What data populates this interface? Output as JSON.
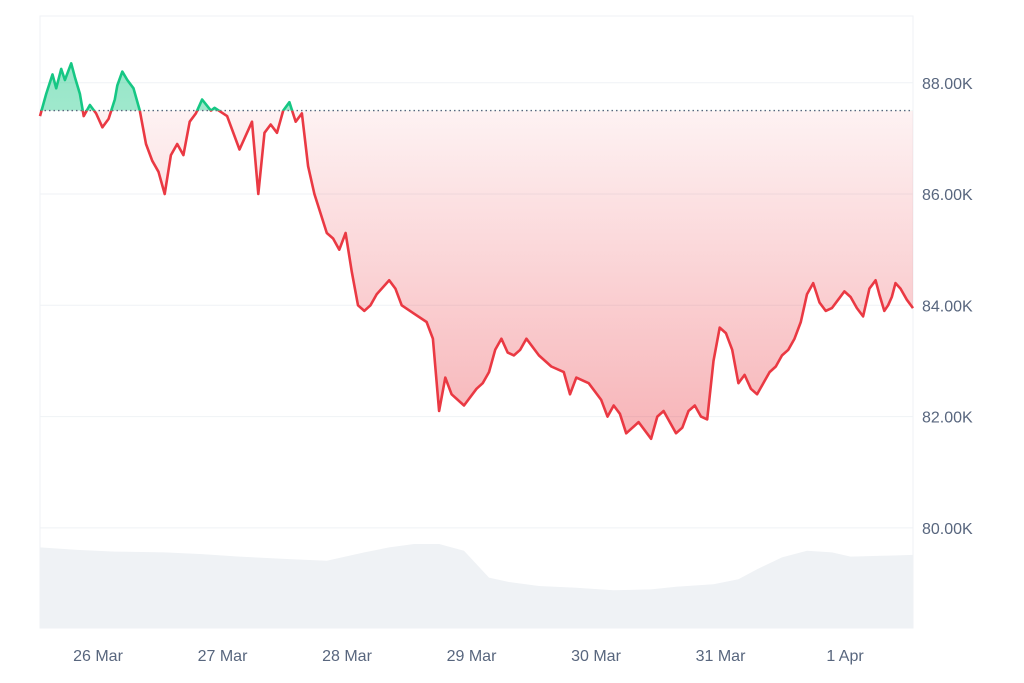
{
  "chart_data": {
    "type": "area",
    "title": "",
    "xlabel": "",
    "ylabel": "",
    "x_tick_labels": [
      "26 Mar",
      "27 Mar",
      "28 Mar",
      "29 Mar",
      "30 Mar",
      "31 Mar",
      "1 Apr"
    ],
    "y_tick_labels": [
      "88.00K",
      "86.00K",
      "84.00K",
      "82.00K",
      "80.00K"
    ],
    "y_tick_values": [
      88000,
      86000,
      84000,
      82000,
      80000
    ],
    "ylim": [
      78200,
      89200
    ],
    "xlim": [
      0,
      7
    ],
    "baseline": 87500,
    "grid": true,
    "colors": {
      "above": "#16c784",
      "below": "#ea3943",
      "above_fill": "#16c784",
      "below_fill": "#ea3943",
      "volume_fill": "#eff2f5",
      "grid": "#eff2f5",
      "baseline_dots": "#58667e"
    },
    "series": [
      {
        "type": "line",
        "x": [
          0,
          0.05,
          0.1,
          0.13,
          0.17,
          0.2,
          0.25,
          0.28,
          0.32,
          0.35,
          0.4,
          0.45,
          0.5,
          0.55,
          0.6,
          0.62,
          0.66,
          0.7,
          0.75,
          0.8,
          0.85,
          0.9,
          0.95,
          1.0,
          1.05,
          1.1,
          1.15,
          1.2,
          1.25,
          1.3,
          1.37,
          1.4,
          1.5,
          1.6,
          1.7,
          1.75,
          1.8,
          1.85,
          1.9,
          1.95,
          2.0,
          2.05,
          2.1,
          2.15,
          2.2,
          2.3,
          2.35,
          2.4,
          2.45,
          2.5,
          2.55,
          2.6,
          2.65,
          2.7,
          2.8,
          2.85,
          2.9,
          3.0,
          3.1,
          3.15,
          3.2,
          3.25,
          3.3,
          3.4,
          3.5,
          3.55,
          3.6,
          3.65,
          3.7,
          3.75,
          3.8,
          3.85,
          3.9,
          4.0,
          4.1,
          4.2,
          4.25,
          4.3,
          4.4,
          4.5,
          4.55,
          4.6,
          4.65,
          4.7,
          4.8,
          4.9,
          4.95,
          5.0,
          5.05,
          5.1,
          5.15,
          5.2,
          5.25,
          5.3,
          5.35,
          5.4,
          5.45,
          5.5,
          5.55,
          5.6,
          5.65,
          5.7,
          5.75,
          5.8,
          5.85,
          5.9,
          5.95,
          6.0,
          6.05,
          6.1,
          6.15,
          6.2,
          6.25,
          6.3,
          6.35,
          6.4,
          6.45,
          6.5,
          6.55,
          6.6,
          6.65,
          6.7,
          6.73,
          6.77,
          6.8,
          6.83,
          6.86,
          6.9,
          6.95,
          7.0
        ],
        "values": [
          87400,
          87800,
          88150,
          87900,
          88250,
          88050,
          88350,
          88100,
          87800,
          87400,
          87600,
          87450,
          87200,
          87350,
          87700,
          87950,
          88200,
          88050,
          87900,
          87500,
          86900,
          86600,
          86400,
          86000,
          86700,
          86900,
          86700,
          87300,
          87450,
          87700,
          87500,
          87550,
          87400,
          86800,
          87300,
          86000,
          87100,
          87250,
          87100,
          87500,
          87650,
          87300,
          87450,
          86500,
          86000,
          85300,
          85200,
          85000,
          85300,
          84600,
          84000,
          83900,
          84000,
          84200,
          84450,
          84300,
          84000,
          83850,
          83700,
          83400,
          82100,
          82700,
          82400,
          82200,
          82500,
          82600,
          82800,
          83200,
          83400,
          83150,
          83100,
          83200,
          83400,
          83100,
          82900,
          82800,
          82400,
          82700,
          82600,
          82300,
          82000,
          82200,
          82050,
          81700,
          81900,
          81600,
          82000,
          82100,
          81900,
          81700,
          81800,
          82100,
          82200,
          82000,
          81950,
          83000,
          83600,
          83500,
          83200,
          82600,
          82750,
          82500,
          82400,
          82600,
          82800,
          82900,
          83100,
          83200,
          83400,
          83700,
          84200,
          84400,
          84050,
          83900,
          83950,
          84100,
          84250,
          84150,
          83950,
          83800,
          84300,
          84450,
          84200,
          83900,
          84000,
          84150,
          84400,
          84300,
          84100,
          83950
        ]
      },
      {
        "type": "volume_area",
        "x": [
          0,
          0.3,
          0.6,
          1.0,
          1.3,
          1.6,
          2.0,
          2.3,
          2.6,
          2.8,
          3.0,
          3.2,
          3.4,
          3.6,
          3.75,
          4.0,
          4.3,
          4.6,
          4.9,
          5.1,
          5.4,
          5.6,
          5.75,
          5.95,
          6.15,
          6.35,
          6.5,
          6.75,
          7.0
        ],
        "values": [
          0.96,
          0.93,
          0.91,
          0.9,
          0.88,
          0.85,
          0.82,
          0.8,
          0.9,
          0.96,
          1.0,
          1.0,
          0.92,
          0.6,
          0.55,
          0.5,
          0.48,
          0.45,
          0.46,
          0.49,
          0.52,
          0.58,
          0.7,
          0.84,
          0.92,
          0.9,
          0.85,
          0.86,
          0.87
        ]
      }
    ]
  }
}
